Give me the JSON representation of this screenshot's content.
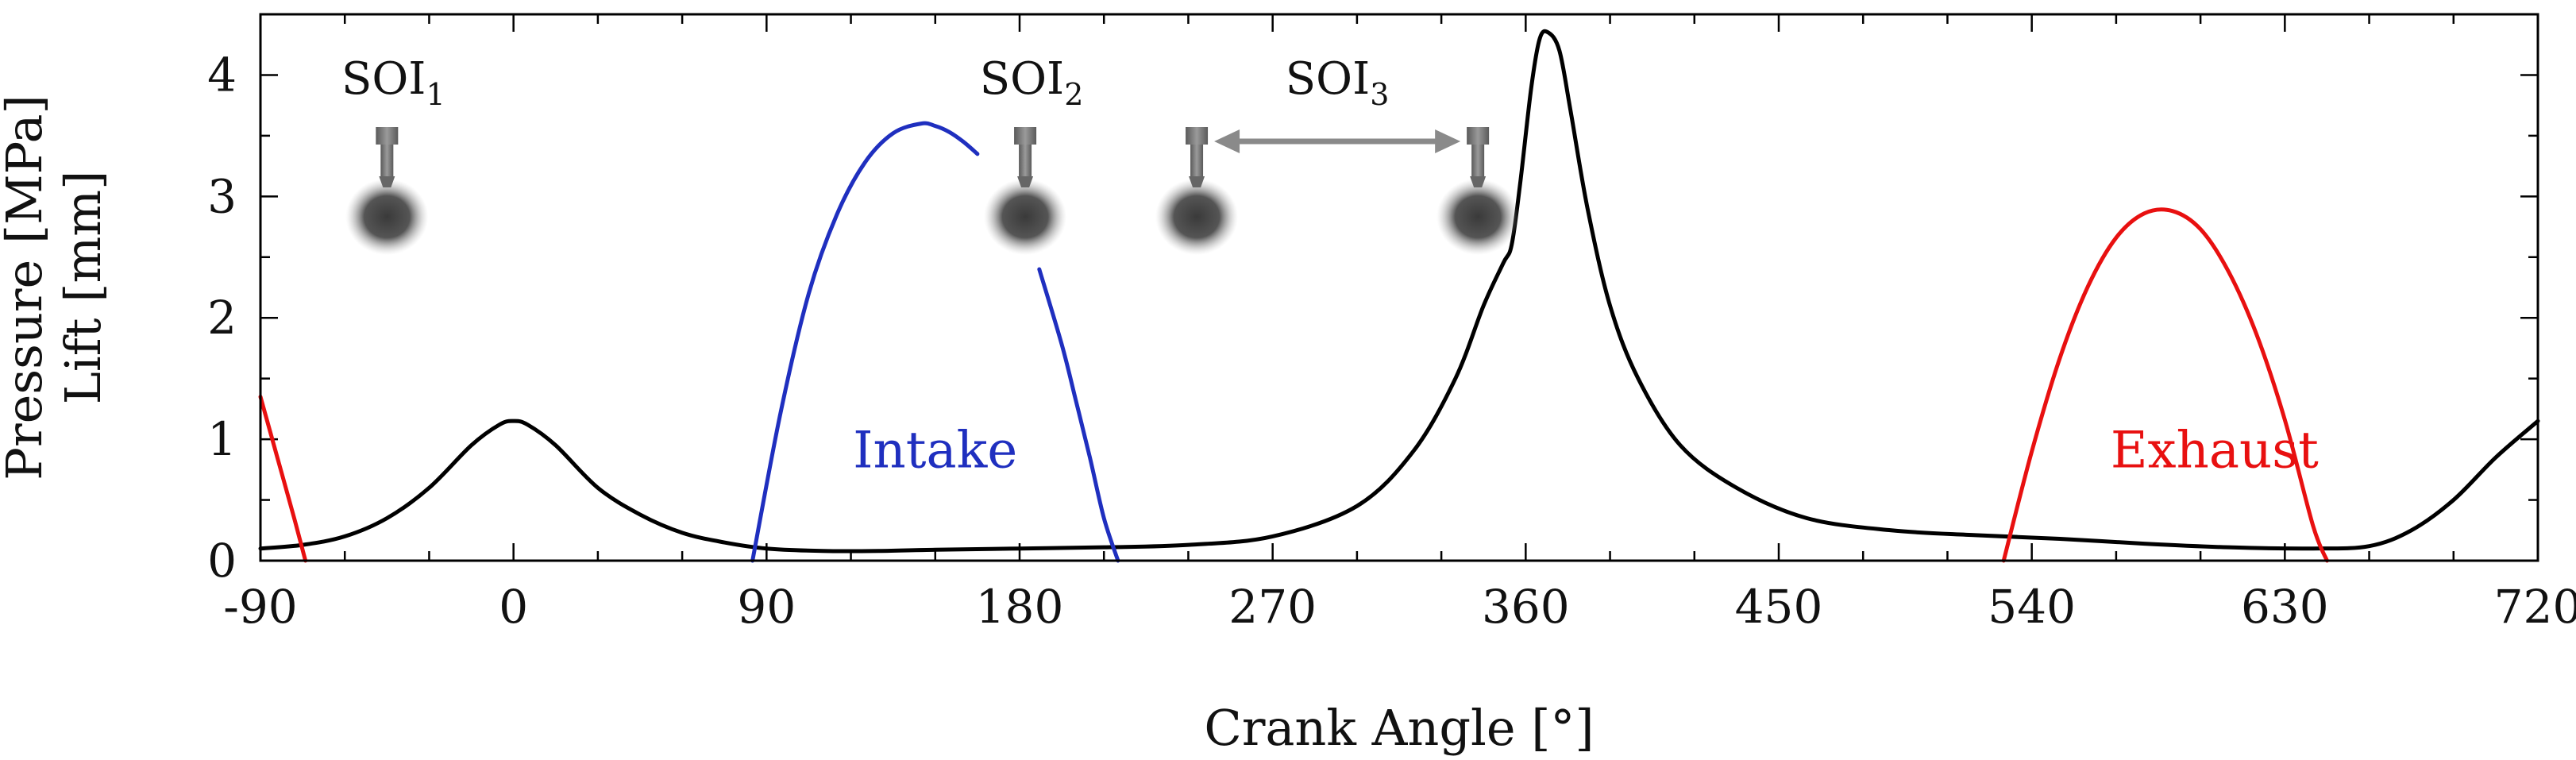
{
  "chart_data": {
    "type": "line",
    "title": "",
    "xlabel": "Crank Angle [°]",
    "ylabel_line1": "Pressure [MPa]",
    "ylabel_line2": "Lift [mm]",
    "xlim": [
      -90,
      720
    ],
    "ylim": [
      0,
      4.5
    ],
    "x_ticks": [
      -90,
      0,
      90,
      180,
      270,
      360,
      450,
      540,
      630,
      720
    ],
    "y_ticks": [
      0,
      1,
      2,
      3,
      4
    ],
    "grid": false,
    "series": [
      {
        "name": "Pressure",
        "color": "#000000",
        "x": [
          -90,
          -75,
          -60,
          -45,
          -30,
          -15,
          -5,
          0,
          5,
          15,
          30,
          45,
          60,
          75,
          90,
          110,
          130,
          150,
          180,
          210,
          240,
          270,
          300,
          320,
          335,
          345,
          352,
          355,
          358,
          362,
          365,
          368,
          372,
          376,
          382,
          390,
          400,
          415,
          435,
          460,
          490,
          520,
          550,
          580,
          610,
          640,
          660,
          675,
          690,
          705,
          720
        ],
        "y": [
          0.1,
          0.13,
          0.2,
          0.35,
          0.6,
          0.95,
          1.12,
          1.15,
          1.12,
          0.95,
          0.6,
          0.38,
          0.23,
          0.15,
          0.1,
          0.08,
          0.08,
          0.09,
          0.1,
          0.11,
          0.13,
          0.2,
          0.45,
          0.9,
          1.5,
          2.1,
          2.45,
          2.6,
          3.1,
          3.9,
          4.3,
          4.35,
          4.2,
          3.7,
          2.9,
          2.1,
          1.5,
          0.95,
          0.6,
          0.35,
          0.25,
          0.21,
          0.18,
          0.14,
          0.11,
          0.1,
          0.12,
          0.25,
          0.5,
          0.85,
          1.15
        ]
      },
      {
        "name": "Intake",
        "color": "#1f2fbf",
        "segments": [
          {
            "x": [
              85,
              95,
              105,
              115,
              125,
              135,
              145,
              150,
              155,
              160,
              165
            ],
            "y": [
              0,
              1.22,
              2.2,
              2.85,
              3.28,
              3.52,
              3.6,
              3.58,
              3.53,
              3.45,
              3.35
            ]
          },
          {
            "x": [
              187,
              195,
              200,
              205,
              210,
              215
            ],
            "y": [
              2.4,
              1.78,
              1.32,
              0.85,
              0.35,
              0
            ]
          }
        ]
      },
      {
        "name": "Exhaust",
        "color": "#e81010",
        "segments": [
          {
            "x": [
              -90,
              -84,
              -78,
              -74
            ],
            "y": [
              1.35,
              0.85,
              0.35,
              0
            ]
          },
          {
            "x": [
              530,
              540,
              550,
              560,
              570,
              580,
              590,
              600,
              610,
              620,
              630,
              640,
              645
            ],
            "y": [
              0,
              0.9,
              1.67,
              2.26,
              2.66,
              2.86,
              2.88,
              2.73,
              2.38,
              1.86,
              1.16,
              0.29,
              0
            ]
          }
        ]
      }
    ],
    "annotations": [
      {
        "label": "Intake",
        "x": 150,
        "y": 0.9,
        "color": "#1f2fbf"
      },
      {
        "label": "Exhaust",
        "x": 605,
        "y": 0.9,
        "color": "#e81010"
      }
    ],
    "injections": [
      {
        "label_base": "SOI",
        "label_sub": "1",
        "x": -45
      },
      {
        "label_base": "SOI",
        "label_sub": "2",
        "x": 182
      },
      {
        "label_base": "SOI",
        "label_sub": "3",
        "x_start": 243,
        "x_end": 343
      }
    ]
  }
}
